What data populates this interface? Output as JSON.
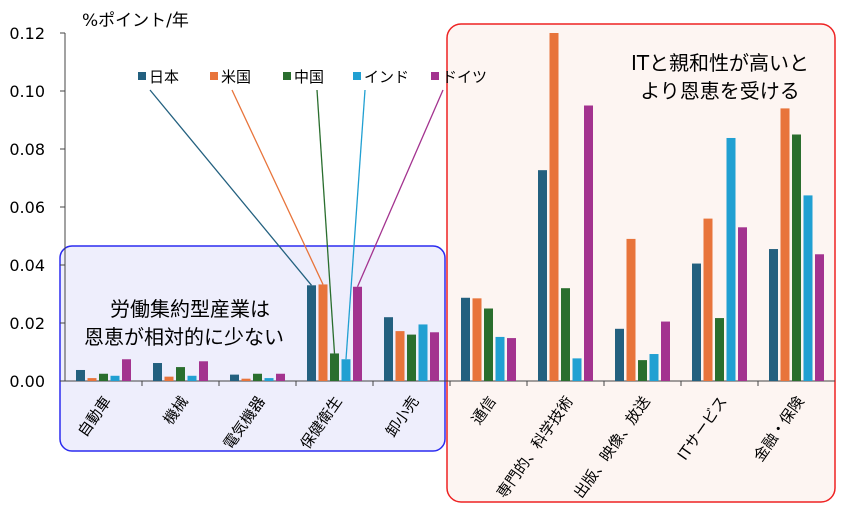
{
  "chart_data": {
    "type": "bar",
    "ylabel": "%ポイント/年",
    "ylim": [
      0,
      0.12
    ],
    "yticks": [
      "0.00",
      "0.02",
      "0.04",
      "0.06",
      "0.08",
      "0.10",
      "0.12"
    ],
    "grid": false,
    "legend_position": "top-left",
    "categories": [
      "自動車",
      "機械",
      "電気機器",
      "保健衛生",
      "卸小売",
      "通信",
      "専門的、科学技術",
      "出版、映像、放送",
      "ITサービス",
      "金融・保険"
    ],
    "series": [
      {
        "name": "日本",
        "color": "#23607f",
        "values": [
          0.0038,
          0.0062,
          0.0022,
          0.033,
          0.022,
          0.0287,
          0.0727,
          0.018,
          0.0405,
          0.0455
        ]
      },
      {
        "name": "米国",
        "color": "#e8743b",
        "values": [
          0.001,
          0.0015,
          0.0008,
          0.0333,
          0.0172,
          0.0285,
          0.12,
          0.049,
          0.056,
          0.094
        ]
      },
      {
        "name": "中国",
        "color": "#2a6e2e",
        "values": [
          0.0025,
          0.0048,
          0.0025,
          0.0095,
          0.016,
          0.025,
          0.032,
          0.0072,
          0.0217,
          0.085
        ]
      },
      {
        "name": "インド",
        "color": "#21a0d2",
        "values": [
          0.0018,
          0.0018,
          0.001,
          0.0075,
          0.0195,
          0.0152,
          0.0078,
          0.0093,
          0.0838,
          0.064
        ]
      },
      {
        "name": "ドイツ",
        "color": "#a3338f",
        "values": [
          0.0075,
          0.0068,
          0.0025,
          0.0325,
          0.0168,
          0.0148,
          0.095,
          0.0205,
          0.053,
          0.0437
        ]
      }
    ],
    "annotations": {
      "low_group": [
        "労働集約型産業は",
        "恩恵が相対的に少ない"
      ],
      "high_group": [
        "ITと親和性が高いと",
        "より恩恵を受ける"
      ]
    }
  }
}
